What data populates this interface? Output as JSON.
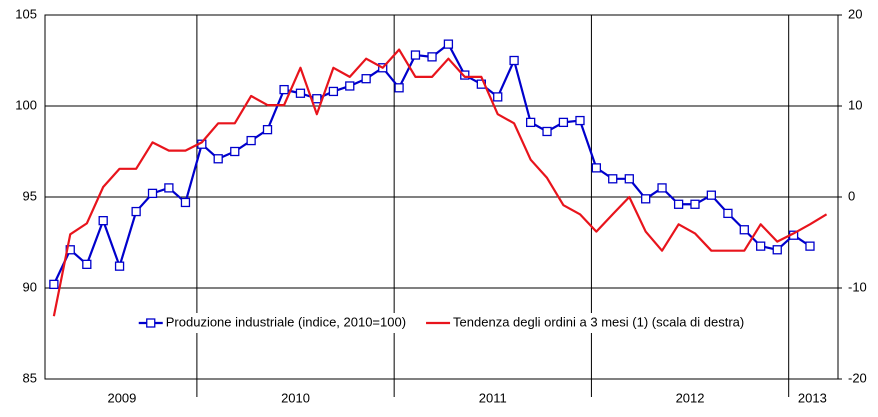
{
  "chart_data": {
    "type": "line",
    "x": [
      2009.275,
      2009.358,
      2009.442,
      2009.525,
      2009.608,
      2009.692,
      2009.775,
      2009.858,
      2009.942,
      2010.025,
      2010.108,
      2010.192,
      2010.275,
      2010.358,
      2010.442,
      2010.525,
      2010.608,
      2010.692,
      2010.775,
      2010.858,
      2010.942,
      2011.025,
      2011.108,
      2011.192,
      2011.275,
      2011.358,
      2011.442,
      2011.525,
      2011.608,
      2011.692,
      2011.775,
      2011.858,
      2011.942,
      2012.025,
      2012.108,
      2012.192,
      2012.275,
      2012.358,
      2012.442,
      2012.525,
      2012.608,
      2012.692,
      2012.775,
      2012.858,
      2012.942,
      2013.025,
      2013.108,
      2013.192
    ],
    "series": [
      {
        "name": "Produzione industriale (indice, 2010=100)",
        "color": "#0000cc",
        "marker": "square",
        "values": [
          90.2,
          92.1,
          91.3,
          93.7,
          91.2,
          94.2,
          95.2,
          95.5,
          94.7,
          97.9,
          97.1,
          97.5,
          98.1,
          98.7,
          100.9,
          100.7,
          100.4,
          100.8,
          101.1,
          101.5,
          102.1,
          101.0,
          102.8,
          102.7,
          103.4,
          101.7,
          101.2,
          100.5,
          102.5,
          99.1,
          98.6,
          99.1,
          99.2,
          96.6,
          96.0,
          96.0,
          94.9,
          95.5,
          94.6,
          94.6,
          95.1,
          94.1,
          93.2,
          92.3,
          92.1,
          92.9,
          92.3,
          null
        ]
      },
      {
        "name": "Tendenza degli ordini a 3 mesi (1) (scala di destra)",
        "color": "#e8141c",
        "axis": "y2",
        "values": [
          -13.1,
          -4.1,
          -2.9,
          1.1,
          3.1,
          3.1,
          6.0,
          5.1,
          5.1,
          6.0,
          8.1,
          8.1,
          11.1,
          10.1,
          10.1,
          14.2,
          9.1,
          14.2,
          13.2,
          15.2,
          14.2,
          16.2,
          13.2,
          13.2,
          15.2,
          13.2,
          13.2,
          9.1,
          8.1,
          4.1,
          2.1,
          -0.9,
          -1.9,
          -3.8,
          -1.9,
          0,
          -3.8,
          -5.9,
          -3.0,
          -4.0,
          -5.9,
          -5.9,
          -5.9,
          -3.0,
          -4.9,
          -4.0,
          -3.0,
          -1.9
        ]
      }
    ],
    "xlim": [
      2009.23,
      2013.25
    ],
    "xticks": [
      {
        "value": 2009.62,
        "label": "2009"
      },
      {
        "value": 2010.5,
        "label": "2010"
      },
      {
        "value": 2011.5,
        "label": "2011"
      },
      {
        "value": 2012.5,
        "label": "2012"
      },
      {
        "value": 2013.12,
        "label": "2013"
      }
    ],
    "xgrid": [
      2010,
      2011,
      2012,
      2013
    ],
    "ylim": [
      85,
      105
    ],
    "yticks": [
      85,
      90,
      95,
      100,
      105
    ],
    "y2lim": [
      -20,
      20
    ],
    "y2ticks": [
      -20,
      -10,
      0,
      10,
      20
    ],
    "grid": true,
    "legend": "lower center"
  }
}
